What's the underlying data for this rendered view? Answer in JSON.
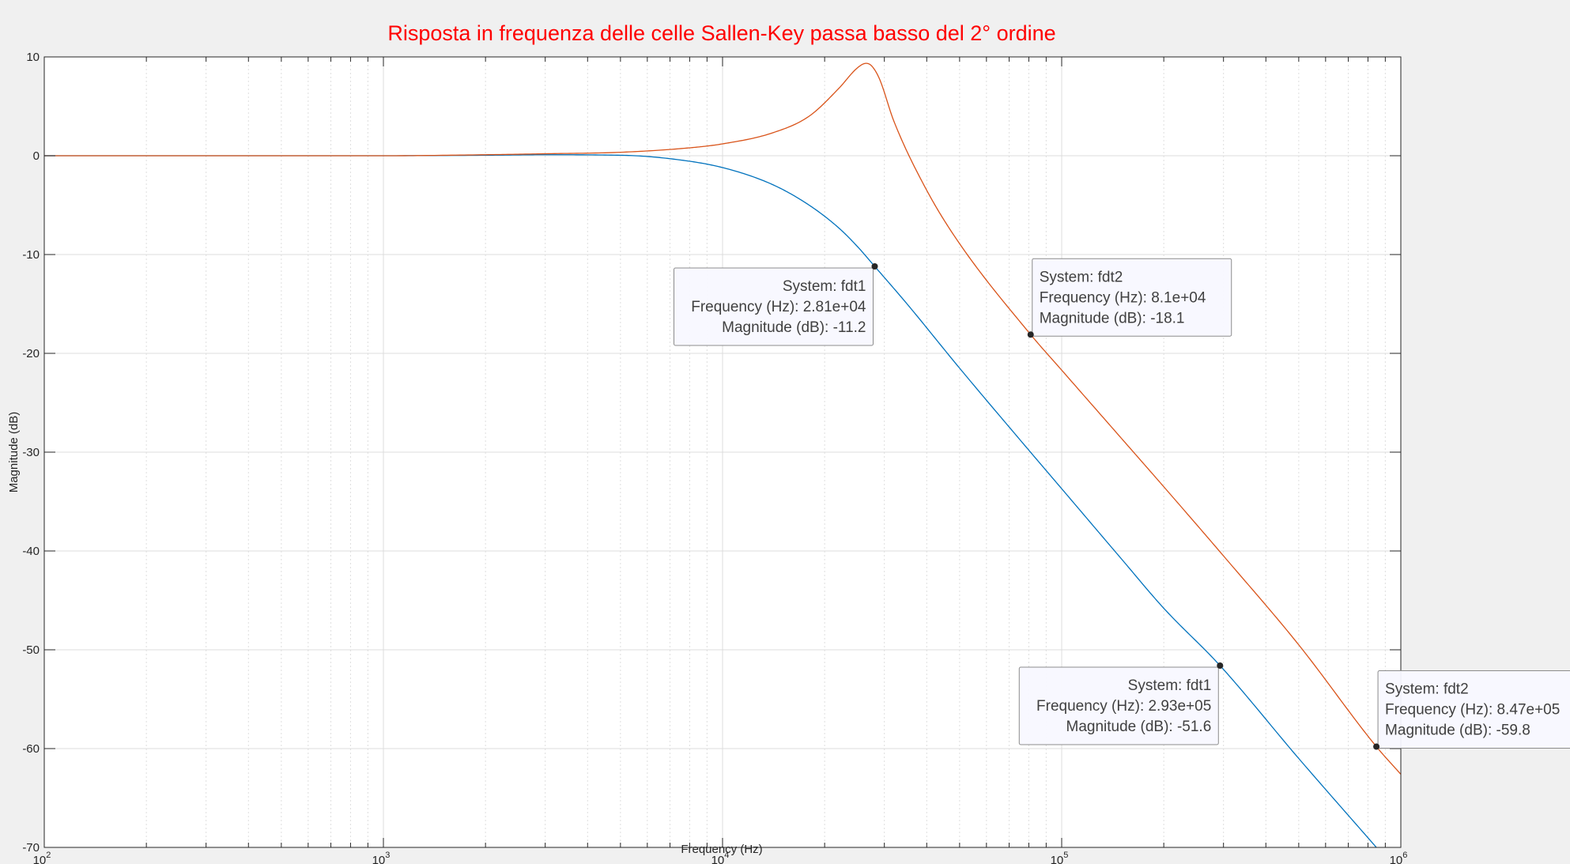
{
  "chart_data": {
    "type": "line",
    "title": "Risposta in frequenza delle celle Sallen-Key passa basso del 2° ordine",
    "xlabel": "Frequency  (Hz)",
    "ylabel": "Magnitude (dB)",
    "xscale": "log",
    "xlim": [
      100,
      1000000
    ],
    "ylim": [
      -70,
      10
    ],
    "grid": true,
    "x_ticks": [
      {
        "base": "10",
        "exp": "2"
      },
      {
        "base": "10",
        "exp": "3"
      },
      {
        "base": "10",
        "exp": "4"
      },
      {
        "base": "10",
        "exp": "5"
      },
      {
        "base": "10",
        "exp": "6"
      }
    ],
    "y_ticks": [
      10,
      0,
      -10,
      -20,
      -30,
      -40,
      -50,
      -60,
      -70
    ],
    "series": [
      {
        "name": "fdt1",
        "color": "#0072bd",
        "x": [
          100,
          1000,
          2000,
          3000,
          5000,
          7000,
          10000,
          14000,
          18000,
          22000,
          25000,
          28100,
          35000,
          50000,
          80000,
          100000,
          150000,
          200000,
          293000,
          500000,
          847000
        ],
        "y": [
          0,
          0,
          0.05,
          0.1,
          0.05,
          -0.3,
          -1.2,
          -2.9,
          -5.0,
          -7.3,
          -9.2,
          -11.2,
          -15.0,
          -21.5,
          -29.8,
          -33.7,
          -40.8,
          -45.8,
          -51.6,
          -61.0,
          -70.0
        ]
      },
      {
        "name": "fdt2",
        "color": "#d95319",
        "x": [
          100,
          1000,
          2000,
          3000,
          5000,
          8000,
          10000,
          14000,
          18000,
          22000,
          25000,
          26500,
          27500,
          29000,
          32000,
          40000,
          50000,
          81000,
          100000,
          150000,
          200000,
          300000,
          500000,
          847000,
          1000000
        ],
        "y": [
          0,
          0,
          0.1,
          0.2,
          0.35,
          0.8,
          1.2,
          2.3,
          4.0,
          6.8,
          8.9,
          9.35,
          9.1,
          7.8,
          3.5,
          -3.5,
          -8.9,
          -18.1,
          -21.7,
          -28.6,
          -33.5,
          -40.5,
          -49.5,
          -59.8,
          -62.6
        ]
      }
    ],
    "datatips": [
      {
        "series": "fdt1",
        "x": 28100,
        "y": -11.2,
        "lines": [
          "System: fdt1",
          "Frequency (Hz): 2.81e+04",
          "Magnitude (dB): -11.2"
        ],
        "align": "right"
      },
      {
        "series": "fdt2",
        "x": 81000,
        "y": -18.1,
        "lines": [
          "System: fdt2",
          "Frequency (Hz): 8.1e+04",
          "Magnitude (dB): -18.1"
        ],
        "align": "left"
      },
      {
        "series": "fdt1",
        "x": 293000,
        "y": -51.6,
        "lines": [
          "System: fdt1",
          "Frequency (Hz): 2.93e+05",
          "Magnitude (dB): -51.6"
        ],
        "align": "right"
      },
      {
        "series": "fdt2",
        "x": 847000,
        "y": -59.8,
        "lines": [
          "System: fdt2",
          "Frequency (Hz): 8.47e+05",
          "Magnitude (dB): -59.8"
        ],
        "align": "left"
      }
    ]
  }
}
